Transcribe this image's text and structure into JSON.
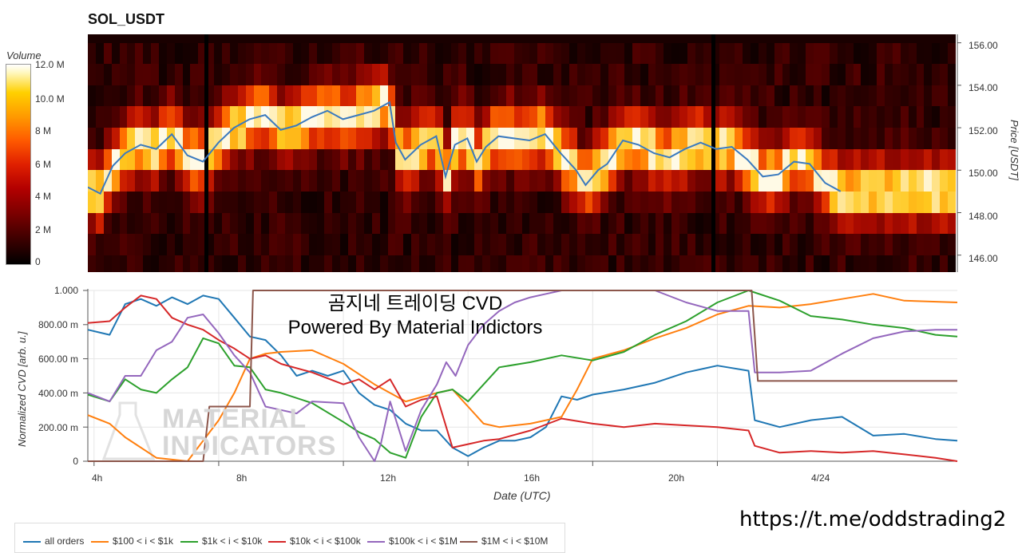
{
  "page_title": "SOL_USDT",
  "chart_data": [
    {
      "type": "heatmap",
      "title": "SOL_USDT",
      "colorbar": {
        "title": "Volume",
        "ticks": [
          "12.0 M",
          "10.0 M",
          "8 M",
          "6 M",
          "4 M",
          "2 M",
          "0"
        ],
        "range": [
          0,
          12000000
        ],
        "colors": [
          "#000000",
          "#7a0000",
          "#e02000",
          "#ff9a00",
          "#ffd000",
          "#ffffff"
        ]
      },
      "y_axis": {
        "label": "Price [USDT]",
        "ticks": [
          "156.00",
          "154.00",
          "152.00",
          "150.00",
          "148.00",
          "146.00"
        ],
        "range": [
          145.2,
          156.4
        ]
      },
      "price_levels": [
        155.5,
        154.5,
        153.5,
        152.5,
        151.5,
        150.5,
        149.5,
        148.5,
        147.5,
        146.5,
        145.5
      ],
      "x_range_hours": [
        3.8,
        31.7
      ],
      "line_color": "#3a7abf",
      "price_series": [
        {
          "t": 3.8,
          "p": 149.2
        },
        {
          "t": 4.2,
          "p": 148.9
        },
        {
          "t": 4.6,
          "p": 150.2
        },
        {
          "t": 5.0,
          "p": 150.8
        },
        {
          "t": 5.5,
          "p": 151.2
        },
        {
          "t": 6.0,
          "p": 151.0
        },
        {
          "t": 6.5,
          "p": 151.7
        },
        {
          "t": 7.0,
          "p": 150.7
        },
        {
          "t": 7.5,
          "p": 150.4
        },
        {
          "t": 8.0,
          "p": 151.3
        },
        {
          "t": 8.5,
          "p": 152.0
        },
        {
          "t": 9.0,
          "p": 152.4
        },
        {
          "t": 9.5,
          "p": 152.6
        },
        {
          "t": 10.0,
          "p": 151.9
        },
        {
          "t": 10.5,
          "p": 152.1
        },
        {
          "t": 11.0,
          "p": 152.5
        },
        {
          "t": 11.5,
          "p": 152.8
        },
        {
          "t": 12.0,
          "p": 152.4
        },
        {
          "t": 12.5,
          "p": 152.6
        },
        {
          "t": 13.0,
          "p": 152.8
        },
        {
          "t": 13.5,
          "p": 153.2
        },
        {
          "t": 13.7,
          "p": 151.3
        },
        {
          "t": 14.0,
          "p": 150.5
        },
        {
          "t": 14.5,
          "p": 151.2
        },
        {
          "t": 15.0,
          "p": 151.6
        },
        {
          "t": 15.3,
          "p": 149.7
        },
        {
          "t": 15.6,
          "p": 151.2
        },
        {
          "t": 16.0,
          "p": 151.5
        },
        {
          "t": 16.3,
          "p": 150.4
        },
        {
          "t": 16.6,
          "p": 151.1
        },
        {
          "t": 17.0,
          "p": 151.6
        },
        {
          "t": 17.5,
          "p": 151.5
        },
        {
          "t": 18.0,
          "p": 151.4
        },
        {
          "t": 18.5,
          "p": 151.7
        },
        {
          "t": 19.0,
          "p": 150.8
        },
        {
          "t": 19.5,
          "p": 150.0
        },
        {
          "t": 19.8,
          "p": 149.3
        },
        {
          "t": 20.2,
          "p": 150.0
        },
        {
          "t": 20.5,
          "p": 150.3
        },
        {
          "t": 21.0,
          "p": 151.4
        },
        {
          "t": 21.5,
          "p": 151.2
        },
        {
          "t": 22.0,
          "p": 150.8
        },
        {
          "t": 22.5,
          "p": 150.6
        },
        {
          "t": 23.0,
          "p": 151.0
        },
        {
          "t": 23.5,
          "p": 151.3
        },
        {
          "t": 24.0,
          "p": 151.0
        },
        {
          "t": 24.5,
          "p": 151.1
        },
        {
          "t": 25.0,
          "p": 150.5
        },
        {
          "t": 25.5,
          "p": 149.7
        },
        {
          "t": 26.0,
          "p": 149.8
        },
        {
          "t": 26.5,
          "p": 150.4
        },
        {
          "t": 27.0,
          "p": 150.3
        },
        {
          "t": 27.5,
          "p": 149.4
        },
        {
          "t": 28.0,
          "p": 149.0
        }
      ]
    },
    {
      "type": "line",
      "x_axis": {
        "label": "Date (UTC)",
        "ticks": [
          "4h",
          "8h",
          "12h",
          "16h",
          "20h",
          "4/24"
        ],
        "tick_hours": [
          4,
          8,
          12,
          16,
          20,
          24
        ],
        "range_hours": [
          3.8,
          31.7
        ]
      },
      "y_axis": {
        "label": "Normalized CVD [arb. u.]",
        "ticks": [
          "1.000",
          "800.00 m",
          "600.00 m",
          "400.00 m",
          "200.00 m",
          "0"
        ],
        "range": [
          0,
          1
        ]
      },
      "series": [
        {
          "name": "all orders",
          "color": "#1f77b4",
          "x": [
            3.8,
            4.5,
            5.0,
            5.5,
            6.0,
            6.5,
            7.0,
            7.5,
            8.0,
            8.5,
            9.0,
            9.5,
            10.0,
            10.5,
            11.0,
            11.5,
            12.0,
            12.5,
            13.0,
            13.5,
            14.0,
            14.5,
            15.0,
            15.5,
            16.0,
            16.5,
            17.0,
            17.5,
            18.0,
            18.5,
            19.0,
            19.5,
            20.0,
            21.0,
            22.0,
            23.0,
            24.0,
            25.0,
            25.2,
            26.0,
            27.0,
            27.5,
            28.0,
            29.0,
            30.0,
            31.0,
            31.7
          ],
          "y": [
            0.77,
            0.74,
            0.92,
            0.95,
            0.91,
            0.96,
            0.92,
            0.97,
            0.95,
            0.84,
            0.73,
            0.71,
            0.62,
            0.5,
            0.53,
            0.5,
            0.53,
            0.4,
            0.33,
            0.3,
            0.22,
            0.18,
            0.18,
            0.08,
            0.03,
            0.08,
            0.12,
            0.12,
            0.14,
            0.2,
            0.38,
            0.36,
            0.39,
            0.42,
            0.46,
            0.52,
            0.56,
            0.53,
            0.24,
            0.2,
            0.24,
            0.25,
            0.26,
            0.15,
            0.16,
            0.13,
            0.12
          ]
        },
        {
          "name": "$100 < i < $1k",
          "color": "#ff7f0e",
          "x": [
            3.8,
            4.5,
            5.0,
            6.0,
            7.0,
            8.0,
            8.5,
            9.0,
            9.5,
            10.0,
            11.0,
            12.0,
            13.0,
            14.0,
            15.0,
            15.5,
            16.0,
            16.5,
            17.0,
            18.0,
            19.0,
            19.5,
            20.0,
            21.0,
            22.0,
            23.0,
            24.0,
            25.0,
            26.0,
            27.0,
            28.0,
            29.0,
            30.0,
            31.7
          ],
          "y": [
            0.27,
            0.22,
            0.14,
            0.02,
            0.0,
            0.24,
            0.4,
            0.6,
            0.63,
            0.64,
            0.65,
            0.57,
            0.45,
            0.35,
            0.4,
            0.42,
            0.32,
            0.22,
            0.2,
            0.22,
            0.26,
            0.42,
            0.6,
            0.65,
            0.72,
            0.78,
            0.86,
            0.91,
            0.9,
            0.92,
            0.95,
            0.98,
            0.94,
            0.93
          ]
        },
        {
          "name": "$1k < i < $10k",
          "color": "#2ca02c",
          "x": [
            3.8,
            4.5,
            5.0,
            5.5,
            6.0,
            6.5,
            7.0,
            7.5,
            8.0,
            8.5,
            9.0,
            9.5,
            10.0,
            11.0,
            12.0,
            12.5,
            13.0,
            13.5,
            14.0,
            14.5,
            15.0,
            15.5,
            16.0,
            16.5,
            17.0,
            18.0,
            19.0,
            20.0,
            21.0,
            22.0,
            23.0,
            24.0,
            25.0,
            26.0,
            27.0,
            28.0,
            29.0,
            30.0,
            31.0,
            31.7
          ],
          "y": [
            0.39,
            0.35,
            0.48,
            0.42,
            0.4,
            0.48,
            0.55,
            0.72,
            0.69,
            0.56,
            0.55,
            0.42,
            0.4,
            0.34,
            0.23,
            0.17,
            0.13,
            0.05,
            0.02,
            0.26,
            0.4,
            0.42,
            0.35,
            0.45,
            0.55,
            0.58,
            0.62,
            0.59,
            0.64,
            0.74,
            0.82,
            0.93,
            1.0,
            0.94,
            0.85,
            0.83,
            0.8,
            0.78,
            0.74,
            0.73
          ]
        },
        {
          "name": "$10k < i < $100k",
          "color": "#d62728",
          "x": [
            3.8,
            4.5,
            5.0,
            5.5,
            6.0,
            6.5,
            7.0,
            7.5,
            8.0,
            8.5,
            9.0,
            9.5,
            10.0,
            11.0,
            12.0,
            12.5,
            13.0,
            13.5,
            14.0,
            14.5,
            15.0,
            15.5,
            16.0,
            16.5,
            17.0,
            18.0,
            19.0,
            20.0,
            21.0,
            22.0,
            23.0,
            24.0,
            25.0,
            25.2,
            26.0,
            27.0,
            28.0,
            29.0,
            30.0,
            31.0,
            31.7
          ],
          "y": [
            0.81,
            0.82,
            0.9,
            0.97,
            0.95,
            0.84,
            0.8,
            0.77,
            0.71,
            0.66,
            0.6,
            0.62,
            0.57,
            0.52,
            0.45,
            0.48,
            0.42,
            0.48,
            0.32,
            0.36,
            0.38,
            0.08,
            0.1,
            0.12,
            0.13,
            0.18,
            0.25,
            0.22,
            0.2,
            0.22,
            0.21,
            0.2,
            0.18,
            0.09,
            0.05,
            0.06,
            0.05,
            0.06,
            0.04,
            0.02,
            0.0
          ]
        },
        {
          "name": "$100k < i < $1M",
          "color": "#9467bd",
          "x": [
            3.8,
            4.5,
            5.0,
            5.5,
            6.0,
            6.5,
            7.0,
            7.5,
            8.0,
            8.5,
            9.0,
            9.5,
            10.0,
            10.5,
            11.0,
            12.0,
            12.5,
            13.0,
            13.2,
            13.5,
            14.0,
            14.5,
            15.0,
            15.3,
            15.6,
            16.0,
            16.5,
            17.0,
            17.5,
            18.0,
            18.5,
            19.0,
            19.5,
            20.0,
            21.0,
            22.0,
            23.0,
            24.0,
            25.0,
            25.2,
            26.0,
            27.0,
            28.0,
            29.0,
            30.0,
            31.0,
            31.7
          ],
          "y": [
            0.4,
            0.35,
            0.5,
            0.5,
            0.65,
            0.7,
            0.84,
            0.86,
            0.75,
            0.62,
            0.52,
            0.32,
            0.3,
            0.28,
            0.35,
            0.34,
            0.14,
            0.0,
            0.1,
            0.35,
            0.06,
            0.3,
            0.45,
            0.58,
            0.5,
            0.68,
            0.8,
            0.88,
            0.93,
            0.96,
            0.98,
            1.0,
            1.0,
            1.0,
            1.0,
            1.0,
            0.93,
            0.88,
            0.88,
            0.52,
            0.52,
            0.53,
            0.63,
            0.72,
            0.76,
            0.77,
            0.77
          ]
        },
        {
          "name": "$1M < i < $10M",
          "color": "#8c564b",
          "x": [
            3.8,
            7.5,
            7.7,
            8.0,
            8.5,
            8.9,
            9.0,
            9.1,
            12.0,
            16.0,
            20.0,
            24.0,
            25.0,
            25.1,
            25.3,
            27.0,
            29.0,
            31.7
          ],
          "y": [
            0.0,
            0.0,
            0.32,
            0.32,
            0.32,
            0.32,
            0.32,
            1.0,
            1.0,
            1.0,
            1.0,
            1.0,
            1.0,
            1.0,
            0.47,
            0.47,
            0.47,
            0.47
          ]
        }
      ]
    }
  ],
  "overlay_title_line1": "곰지네 트레이딩 CVD",
  "overlay_title_line2": "Powered By Material Indictors",
  "logo_text_line1": "MATERIAL",
  "logo_text_line2": "INDICATORS",
  "url": "https://t.me/oddstrading2"
}
